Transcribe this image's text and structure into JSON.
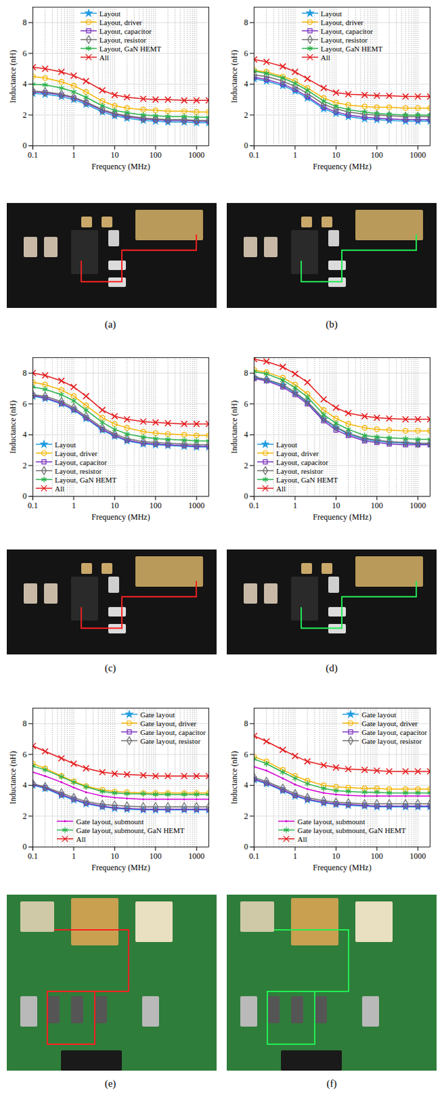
{
  "chart_data": [
    {
      "type": "line",
      "caption": "(a)",
      "x_label": "Frequency (MHz)",
      "y_label": "Inductance (nH)",
      "log": "x",
      "grid": true,
      "legend": "top",
      "x": [
        0.1,
        0.2,
        0.5,
        1,
        2,
        5,
        10,
        20,
        50,
        100,
        200,
        500,
        1000,
        2000
      ],
      "xlim": [
        0.1,
        2000
      ],
      "xticks": [
        0.1,
        1,
        10,
        100,
        1000
      ],
      "ylim": [
        0,
        9
      ],
      "yticks": [
        0,
        2,
        4,
        6,
        8
      ],
      "series": [
        {
          "name": "Layout",
          "color": "#1e9be0",
          "marker": "star",
          "values": [
            3.4,
            3.35,
            3.2,
            3.0,
            2.7,
            2.2,
            1.95,
            1.8,
            1.65,
            1.6,
            1.55,
            1.55,
            1.5,
            1.5
          ]
        },
        {
          "name": "Layout, driver",
          "color": "#f5b400",
          "marker": "circle",
          "values": [
            4.5,
            4.4,
            4.15,
            3.9,
            3.5,
            2.9,
            2.6,
            2.45,
            2.35,
            2.3,
            2.25,
            2.25,
            2.2,
            2.2
          ]
        },
        {
          "name": "Layout, capacitor",
          "color": "#7b2fbe",
          "marker": "square",
          "values": [
            3.5,
            3.45,
            3.3,
            3.1,
            2.8,
            2.3,
            2.05,
            1.9,
            1.75,
            1.7,
            1.65,
            1.65,
            1.6,
            1.6
          ]
        },
        {
          "name": "Layout, resistor",
          "color": "#6e6e6e",
          "marker": "diamond",
          "values": [
            3.55,
            3.5,
            3.35,
            3.15,
            2.85,
            2.35,
            2.1,
            1.95,
            1.8,
            1.75,
            1.7,
            1.7,
            1.65,
            1.65
          ]
        },
        {
          "name": "Layout, GaN HEMT",
          "color": "#2bb24c",
          "marker": "asterisk",
          "values": [
            4.0,
            3.95,
            3.75,
            3.5,
            3.15,
            2.6,
            2.3,
            2.15,
            2.0,
            1.95,
            1.9,
            1.9,
            1.85,
            1.85
          ]
        },
        {
          "name": "All",
          "color": "#e41a1c",
          "marker": "times",
          "values": [
            5.1,
            5.0,
            4.8,
            4.55,
            4.2,
            3.6,
            3.3,
            3.15,
            3.05,
            3.0,
            3.0,
            2.95,
            2.95,
            2.95
          ]
        }
      ]
    },
    {
      "type": "line",
      "caption": "(b)",
      "x_label": "Frequency (MHz)",
      "y_label": "Inductance (nH)",
      "log": "x",
      "grid": true,
      "legend": "top",
      "x": [
        0.1,
        0.2,
        0.5,
        1,
        2,
        5,
        10,
        20,
        50,
        100,
        200,
        500,
        1000,
        2000
      ],
      "xlim": [
        0.1,
        2000
      ],
      "xticks": [
        0.1,
        1,
        10,
        100,
        1000
      ],
      "ylim": [
        0,
        9
      ],
      "yticks": [
        0,
        2,
        4,
        6,
        8
      ],
      "series": [
        {
          "name": "Layout",
          "color": "#1e9be0",
          "marker": "star",
          "values": [
            4.35,
            4.2,
            3.9,
            3.55,
            3.1,
            2.4,
            2.1,
            1.9,
            1.75,
            1.7,
            1.65,
            1.6,
            1.6,
            1.6
          ]
        },
        {
          "name": "Layout, driver",
          "color": "#f5b400",
          "marker": "circle",
          "values": [
            4.9,
            4.8,
            4.5,
            4.2,
            3.75,
            3.1,
            2.8,
            2.65,
            2.55,
            2.5,
            2.5,
            2.45,
            2.45,
            2.45
          ]
        },
        {
          "name": "Layout, capacitor",
          "color": "#7b2fbe",
          "marker": "square",
          "values": [
            4.45,
            4.3,
            4.0,
            3.65,
            3.2,
            2.5,
            2.2,
            2.0,
            1.85,
            1.8,
            1.75,
            1.7,
            1.7,
            1.7
          ]
        },
        {
          "name": "Layout, resistor",
          "color": "#6e6e6e",
          "marker": "diamond",
          "values": [
            4.6,
            4.5,
            4.2,
            3.85,
            3.4,
            2.7,
            2.4,
            2.2,
            2.05,
            2.0,
            1.95,
            1.9,
            1.9,
            1.9
          ]
        },
        {
          "name": "Layout, GaN HEMT",
          "color": "#2bb24c",
          "marker": "asterisk",
          "values": [
            4.85,
            4.7,
            4.4,
            4.05,
            3.6,
            2.9,
            2.55,
            2.35,
            2.2,
            2.1,
            2.05,
            2.0,
            2.0,
            2.0
          ]
        },
        {
          "name": "All",
          "color": "#e41a1c",
          "marker": "times",
          "values": [
            5.6,
            5.45,
            5.15,
            4.8,
            4.35,
            3.75,
            3.45,
            3.35,
            3.3,
            3.25,
            3.25,
            3.2,
            3.2,
            3.2
          ]
        }
      ]
    },
    {
      "type": "line",
      "caption": "(c)",
      "x_label": "Frequency (MHz)",
      "y_label": "Inductance (nH)",
      "log": "x",
      "grid": true,
      "legend": "bottom-left",
      "x": [
        0.1,
        0.2,
        0.5,
        1,
        2,
        5,
        10,
        20,
        50,
        100,
        200,
        500,
        1000,
        2000
      ],
      "xlim": [
        0.1,
        2000
      ],
      "xticks": [
        0.1,
        1,
        10,
        100,
        1000
      ],
      "ylim": [
        0,
        9
      ],
      "yticks": [
        0,
        2,
        4,
        6,
        8
      ],
      "series": [
        {
          "name": "Layout",
          "color": "#1e9be0",
          "marker": "star",
          "values": [
            6.5,
            6.35,
            6.0,
            5.6,
            5.05,
            4.3,
            3.9,
            3.6,
            3.4,
            3.35,
            3.3,
            3.25,
            3.2,
            3.2
          ]
        },
        {
          "name": "Layout, driver",
          "color": "#f5b400",
          "marker": "circle",
          "values": [
            7.4,
            7.25,
            6.9,
            6.5,
            5.9,
            5.1,
            4.7,
            4.45,
            4.2,
            4.1,
            4.05,
            4.0,
            3.95,
            3.95
          ]
        },
        {
          "name": "Layout, capacitor",
          "color": "#7b2fbe",
          "marker": "square",
          "values": [
            6.55,
            6.4,
            6.05,
            5.65,
            5.1,
            4.35,
            3.95,
            3.65,
            3.45,
            3.4,
            3.35,
            3.3,
            3.25,
            3.25
          ]
        },
        {
          "name": "Layout, resistor",
          "color": "#6e6e6e",
          "marker": "diamond",
          "values": [
            6.6,
            6.5,
            6.15,
            5.75,
            5.2,
            4.45,
            4.05,
            3.75,
            3.55,
            3.5,
            3.45,
            3.4,
            3.35,
            3.35
          ]
        },
        {
          "name": "Layout, GaN HEMT",
          "color": "#2bb24c",
          "marker": "asterisk",
          "values": [
            7.1,
            6.95,
            6.6,
            6.2,
            5.6,
            4.8,
            4.35,
            4.05,
            3.85,
            3.75,
            3.7,
            3.65,
            3.6,
            3.6
          ]
        },
        {
          "name": "All",
          "color": "#e41a1c",
          "marker": "times",
          "values": [
            8.0,
            7.85,
            7.5,
            7.1,
            6.5,
            5.6,
            5.2,
            5.0,
            4.85,
            4.8,
            4.75,
            4.7,
            4.7,
            4.7
          ]
        }
      ]
    },
    {
      "type": "line",
      "caption": "(d)",
      "x_label": "Frequency (MHz)",
      "y_label": "Inductance (nH)",
      "log": "x",
      "grid": true,
      "legend": "bottom-left",
      "x": [
        0.1,
        0.2,
        0.5,
        1,
        2,
        5,
        10,
        20,
        50,
        100,
        200,
        500,
        1000,
        2000
      ],
      "xlim": [
        0.1,
        2000
      ],
      "xticks": [
        0.1,
        1,
        10,
        100,
        1000
      ],
      "ylim": [
        0,
        9
      ],
      "yticks": [
        0,
        2,
        4,
        6,
        8
      ],
      "series": [
        {
          "name": "Layout",
          "color": "#1e9be0",
          "marker": "star",
          "values": [
            7.7,
            7.55,
            7.2,
            6.7,
            6.1,
            5.0,
            4.45,
            4.05,
            3.7,
            3.6,
            3.5,
            3.45,
            3.4,
            3.4
          ]
        },
        {
          "name": "Layout, driver",
          "color": "#f5b400",
          "marker": "circle",
          "values": [
            8.2,
            8.05,
            7.7,
            7.25,
            6.65,
            5.6,
            5.05,
            4.7,
            4.45,
            4.35,
            4.3,
            4.25,
            4.25,
            4.25
          ]
        },
        {
          "name": "Layout, capacitor",
          "color": "#7b2fbe",
          "marker": "square",
          "values": [
            7.65,
            7.5,
            7.1,
            6.6,
            6.0,
            4.9,
            4.3,
            3.95,
            3.6,
            3.5,
            3.4,
            3.35,
            3.35,
            3.35
          ]
        },
        {
          "name": "Layout, resistor",
          "color": "#6e6e6e",
          "marker": "diamond",
          "values": [
            7.75,
            7.6,
            7.25,
            6.75,
            6.15,
            5.05,
            4.5,
            4.1,
            3.75,
            3.65,
            3.55,
            3.5,
            3.45,
            3.45
          ]
        },
        {
          "name": "Layout, GaN HEMT",
          "color": "#2bb24c",
          "marker": "asterisk",
          "values": [
            8.1,
            7.95,
            7.55,
            7.05,
            6.45,
            5.3,
            4.75,
            4.35,
            3.95,
            3.85,
            3.8,
            3.75,
            3.7,
            3.7
          ]
        },
        {
          "name": "All",
          "color": "#e41a1c",
          "marker": "times",
          "values": [
            8.9,
            8.75,
            8.4,
            7.95,
            7.4,
            6.3,
            5.75,
            5.4,
            5.2,
            5.1,
            5.05,
            5.0,
            5.0,
            5.0
          ]
        }
      ]
    },
    {
      "type": "line",
      "caption": "(e)",
      "x_label": "Frequency (MHz)",
      "y_label": "Inductance (nH)",
      "log": "x",
      "grid": true,
      "legend": "top-right",
      "x": [
        0.1,
        0.2,
        0.5,
        1,
        2,
        5,
        10,
        20,
        50,
        100,
        200,
        500,
        1000,
        2000
      ],
      "xlim": [
        0.1,
        2000
      ],
      "xticks": [
        0.1,
        1,
        10,
        100,
        1000
      ],
      "ylim": [
        0,
        9
      ],
      "yticks": [
        0,
        2,
        4,
        6,
        8
      ],
      "series": [
        {
          "name": "Gate layout",
          "color": "#1e9be0",
          "marker": "star",
          "values": [
            4.0,
            3.8,
            3.35,
            3.05,
            2.8,
            2.6,
            2.5,
            2.45,
            2.4,
            2.4,
            2.4,
            2.4,
            2.4,
            2.4
          ]
        },
        {
          "name": "Gate layout, driver",
          "color": "#f5b400",
          "marker": "circle",
          "values": [
            5.4,
            5.1,
            4.6,
            4.25,
            3.95,
            3.7,
            3.6,
            3.55,
            3.5,
            3.5,
            3.5,
            3.5,
            3.5,
            3.5
          ]
        },
        {
          "name": "Gate layout, capacitor",
          "color": "#7b2fbe",
          "marker": "square",
          "values": [
            4.05,
            3.85,
            3.4,
            3.1,
            2.85,
            2.65,
            2.55,
            2.5,
            2.45,
            2.45,
            2.45,
            2.45,
            2.45,
            2.45
          ]
        },
        {
          "name": "Gate layout, resistor",
          "color": "#6e6e6e",
          "marker": "diamond",
          "values": [
            4.1,
            3.9,
            3.5,
            3.2,
            2.95,
            2.75,
            2.7,
            2.65,
            2.6,
            2.6,
            2.6,
            2.6,
            2.6,
            2.6
          ]
        },
        {
          "name": "Gate layout, submount",
          "color": "#d400d4",
          "marker": "dot",
          "values": [
            4.85,
            4.6,
            4.2,
            3.85,
            3.55,
            3.3,
            3.2,
            3.15,
            3.1,
            3.1,
            3.1,
            3.1,
            3.1,
            3.1
          ]
        },
        {
          "name": "Gate layout, submount, GaN HEMT",
          "color": "#2bb24c",
          "marker": "asterisk",
          "values": [
            5.25,
            5.0,
            4.55,
            4.2,
            3.9,
            3.6,
            3.5,
            3.45,
            3.45,
            3.4,
            3.4,
            3.4,
            3.4,
            3.4
          ]
        },
        {
          "name": "All",
          "color": "#e41a1c",
          "marker": "times",
          "values": [
            6.55,
            6.2,
            5.75,
            5.4,
            5.1,
            4.85,
            4.75,
            4.7,
            4.65,
            4.6,
            4.6,
            4.6,
            4.6,
            4.6
          ]
        }
      ]
    },
    {
      "type": "line",
      "caption": "(f)",
      "x_label": "Frequency (MHz)",
      "y_label": "Inductance (nH)",
      "log": "x",
      "grid": true,
      "legend": "top-right",
      "x": [
        0.1,
        0.2,
        0.5,
        1,
        2,
        5,
        10,
        20,
        50,
        100,
        200,
        500,
        1000,
        2000
      ],
      "xlim": [
        0.1,
        2000
      ],
      "xticks": [
        0.1,
        1,
        10,
        100,
        1000
      ],
      "ylim": [
        0,
        9
      ],
      "yticks": [
        0,
        2,
        4,
        6,
        8
      ],
      "series": [
        {
          "name": "Gate layout",
          "color": "#1e9be0",
          "marker": "star",
          "values": [
            4.35,
            4.1,
            3.65,
            3.3,
            3.05,
            2.85,
            2.75,
            2.7,
            2.65,
            2.6,
            2.6,
            2.6,
            2.6,
            2.6
          ]
        },
        {
          "name": "Gate layout, driver",
          "color": "#f5b400",
          "marker": "circle",
          "values": [
            5.85,
            5.55,
            5.0,
            4.6,
            4.3,
            4.0,
            3.9,
            3.85,
            3.8,
            3.8,
            3.75,
            3.75,
            3.75,
            3.75
          ]
        },
        {
          "name": "Gate layout, capacitor",
          "color": "#7b2fbe",
          "marker": "square",
          "values": [
            4.4,
            4.15,
            3.7,
            3.35,
            3.1,
            2.9,
            2.8,
            2.75,
            2.7,
            2.65,
            2.65,
            2.65,
            2.65,
            2.65
          ]
        },
        {
          "name": "Gate layout, resistor",
          "color": "#6e6e6e",
          "marker": "diamond",
          "values": [
            4.5,
            4.25,
            3.8,
            3.45,
            3.2,
            3.0,
            2.9,
            2.85,
            2.8,
            2.8,
            2.8,
            2.8,
            2.8,
            2.8
          ]
        },
        {
          "name": "Gate layout, submount",
          "color": "#d400d4",
          "marker": "dot",
          "values": [
            5.2,
            4.95,
            4.45,
            4.05,
            3.75,
            3.5,
            3.4,
            3.35,
            3.3,
            3.3,
            3.3,
            3.3,
            3.3,
            3.3
          ]
        },
        {
          "name": "Gate layout, submount, GaN HEMT",
          "color": "#2bb24c",
          "marker": "asterisk",
          "values": [
            5.7,
            5.4,
            4.85,
            4.45,
            4.1,
            3.8,
            3.65,
            3.6,
            3.55,
            3.55,
            3.5,
            3.5,
            3.5,
            3.5
          ]
        },
        {
          "name": "All",
          "color": "#e41a1c",
          "marker": "times",
          "values": [
            7.2,
            6.85,
            6.3,
            5.9,
            5.55,
            5.3,
            5.15,
            5.05,
            5.0,
            4.95,
            4.9,
            4.9,
            4.9,
            4.9
          ]
        }
      ]
    }
  ]
}
